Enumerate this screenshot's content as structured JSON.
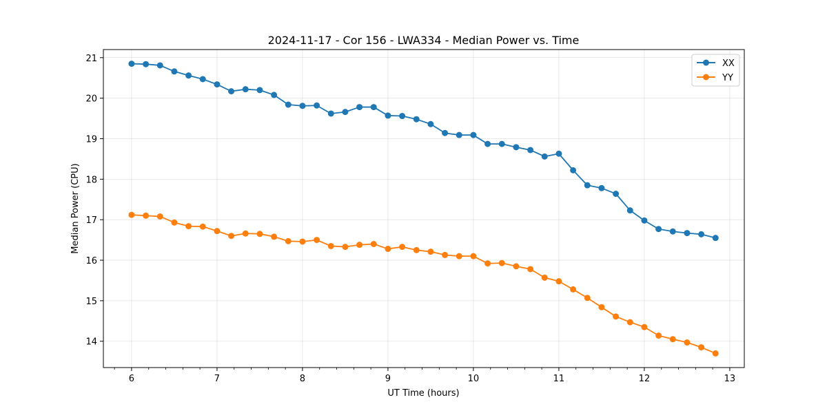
{
  "chart_data": {
    "type": "line",
    "title": "2024-11-17 - Cor 156 - LWA334 - Median Power vs. Time",
    "xlabel": "UT Time (hours)",
    "ylabel": "Median Power (CPU)",
    "xlim": [
      5.67,
      13.17
    ],
    "ylim": [
      13.35,
      21.2
    ],
    "xticks": [
      6,
      7,
      8,
      9,
      10,
      11,
      12,
      13
    ],
    "xtick_labels": [
      "6",
      "7",
      "8",
      "9",
      "10",
      "11",
      "12",
      "13"
    ],
    "xminor_step": 0.2,
    "yticks": [
      14,
      15,
      16,
      17,
      18,
      19,
      20,
      21
    ],
    "ytick_labels": [
      "14",
      "15",
      "16",
      "17",
      "18",
      "19",
      "20",
      "21"
    ],
    "grid": true,
    "legend_position": "top-right",
    "x": [
      6.0,
      6.1667,
      6.3333,
      6.5,
      6.6667,
      6.8333,
      7.0,
      7.1667,
      7.3333,
      7.5,
      7.6667,
      7.8333,
      8.0,
      8.1667,
      8.3333,
      8.5,
      8.6667,
      8.8333,
      9.0,
      9.1667,
      9.3333,
      9.5,
      9.6667,
      9.8333,
      10.0,
      10.1667,
      10.3333,
      10.5,
      10.6667,
      10.8333,
      11.0,
      11.1667,
      11.3333,
      11.5,
      11.6667,
      11.8333,
      12.0,
      12.1667,
      12.3333,
      12.5,
      12.6667,
      12.8333
    ],
    "series": [
      {
        "name": "XX",
        "color": "#1f77b4",
        "values": [
          20.85,
          20.84,
          20.81,
          20.66,
          20.56,
          20.47,
          20.34,
          20.17,
          20.22,
          20.2,
          20.08,
          19.84,
          19.81,
          19.82,
          19.62,
          19.66,
          19.78,
          19.78,
          19.57,
          19.56,
          19.48,
          19.36,
          19.14,
          19.09,
          19.09,
          18.87,
          18.87,
          18.79,
          18.72,
          18.56,
          18.63,
          18.22,
          17.85,
          17.78,
          17.64,
          17.23,
          16.98,
          16.77,
          16.71,
          16.67,
          16.64,
          16.55
        ]
      },
      {
        "name": "YY",
        "color": "#ff7f0e",
        "values": [
          17.12,
          17.1,
          17.08,
          16.93,
          16.84,
          16.83,
          16.72,
          16.6,
          16.66,
          16.65,
          16.58,
          16.47,
          16.46,
          16.5,
          16.35,
          16.33,
          16.38,
          16.4,
          16.28,
          16.33,
          16.25,
          16.21,
          16.13,
          16.1,
          16.1,
          15.92,
          15.93,
          15.85,
          15.78,
          15.57,
          15.48,
          15.28,
          15.07,
          14.84,
          14.61,
          14.47,
          14.35,
          14.14,
          14.05,
          13.97,
          13.85,
          13.7
        ]
      }
    ]
  }
}
